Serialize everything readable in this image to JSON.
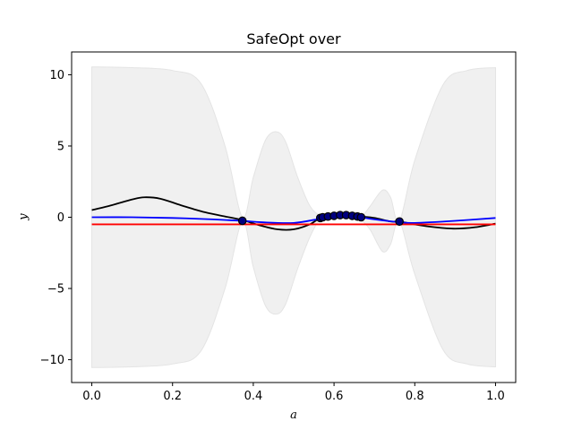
{
  "chart_data": {
    "type": "line",
    "title": "SafeOpt over",
    "xlabel": "a",
    "ylabel": "y",
    "xlim": [
      -0.05,
      1.05
    ],
    "ylim": [
      -11.6,
      11.6
    ],
    "xticks": [
      0.0,
      0.2,
      0.4,
      0.6,
      0.8,
      1.0
    ],
    "xtick_labels": [
      "0.0",
      "0.2",
      "0.4",
      "0.6",
      "0.8",
      "1.0"
    ],
    "yticks": [
      -10,
      -5,
      0,
      5,
      10
    ],
    "ytick_labels": [
      "−10",
      "−5",
      "0",
      "5",
      "10"
    ],
    "grid": false,
    "colors": {
      "band": "#f0f0f0",
      "true_function": "#000000",
      "gp_mean": "#0000ff",
      "safety_threshold": "#ff0000",
      "observations": "#000080"
    },
    "confidence_band": {
      "x": [
        0.0,
        0.1,
        0.2,
        0.27,
        0.33,
        0.373,
        0.4,
        0.43,
        0.457,
        0.48,
        0.51,
        0.54,
        0.566,
        0.58,
        0.6,
        0.62,
        0.64,
        0.667,
        0.69,
        0.72,
        0.74,
        0.762,
        0.8,
        0.87,
        0.93,
        1.0
      ],
      "upper": [
        10.55,
        10.5,
        10.3,
        9.4,
        5.0,
        0.0,
        2.8,
        5.4,
        6.0,
        5.3,
        2.8,
        0.8,
        0.1,
        0.1,
        0.1,
        0.2,
        0.2,
        0.05,
        0.8,
        1.9,
        1.4,
        -0.3,
        4.0,
        9.3,
        10.3,
        10.5
      ],
      "lower": [
        -10.55,
        -10.5,
        -10.3,
        -9.4,
        -5.0,
        -0.3,
        -3.5,
        -6.2,
        -6.8,
        -6.1,
        -3.6,
        -1.4,
        -0.1,
        -0.1,
        0.0,
        0.1,
        0.1,
        -0.2,
        -0.9,
        -2.4,
        -1.9,
        -0.3,
        -4.0,
        -9.3,
        -10.3,
        -10.5
      ]
    },
    "series": [
      {
        "x": [
          0.0,
          0.05,
          0.1,
          0.13,
          0.17,
          0.22,
          0.28,
          0.34,
          0.373,
          0.42,
          0.46,
          0.5,
          0.54,
          0.566,
          0.6,
          0.62,
          0.64,
          0.667,
          0.7,
          0.74,
          0.762,
          0.8,
          0.85,
          0.9,
          0.95,
          1.0
        ],
        "y": [
          0.5,
          0.85,
          1.25,
          1.4,
          1.3,
          0.85,
          0.35,
          0.0,
          -0.2,
          -0.6,
          -0.85,
          -0.85,
          -0.5,
          -0.05,
          0.15,
          0.2,
          0.15,
          0.05,
          -0.05,
          -0.3,
          -0.3,
          -0.5,
          -0.7,
          -0.8,
          -0.7,
          -0.45
        ]
      },
      {
        "x": [
          0.0,
          0.1,
          0.2,
          0.3,
          0.373,
          0.42,
          0.5,
          0.566,
          0.6,
          0.62,
          0.64,
          0.667,
          0.7,
          0.762,
          0.8,
          0.9,
          1.0
        ],
        "y": [
          0.0,
          0.0,
          -0.05,
          -0.15,
          -0.25,
          -0.35,
          -0.4,
          -0.1,
          0.05,
          0.1,
          0.1,
          0.0,
          -0.15,
          -0.35,
          -0.4,
          -0.25,
          -0.05
        ]
      },
      {
        "x": [
          0.0,
          1.0
        ],
        "y": [
          -0.5,
          -0.5
        ]
      }
    ],
    "observations": {
      "x": [
        0.373,
        0.566,
        0.572,
        0.585,
        0.6,
        0.615,
        0.63,
        0.645,
        0.658,
        0.667,
        0.762
      ],
      "y": [
        -0.25,
        -0.05,
        0.0,
        0.05,
        0.1,
        0.15,
        0.15,
        0.1,
        0.05,
        0.0,
        -0.3
      ]
    }
  }
}
